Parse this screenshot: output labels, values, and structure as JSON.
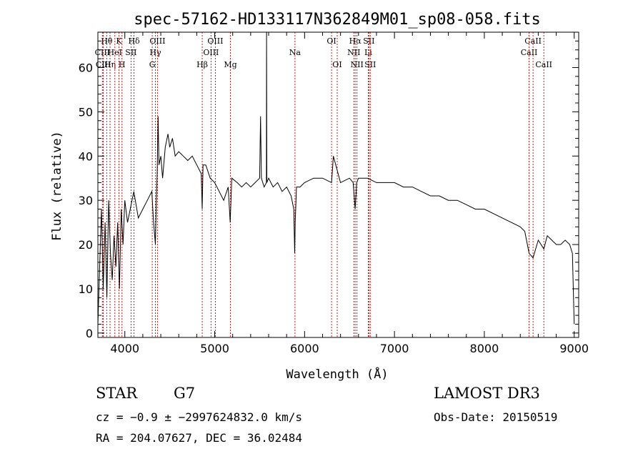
{
  "chart_data": {
    "type": "line",
    "title": "spec-57162-HD133117N362849M01_sp08-058.fits",
    "xlabel": "Wavelength (Å)",
    "ylabel": "Flux (relative)",
    "xlim": [
      3700,
      9050
    ],
    "ylim": [
      -1,
      68
    ],
    "xticks": [
      4000,
      5000,
      6000,
      7000,
      8000,
      9000
    ],
    "yticks": [
      0,
      10,
      20,
      30,
      40,
      50,
      60
    ],
    "grid": false,
    "line_color": "#000000",
    "marker_color": "#cc0000",
    "series": [
      {
        "x": [
          3700,
          3720,
          3740,
          3760,
          3780,
          3800,
          3820,
          3840,
          3860,
          3880,
          3900,
          3920,
          3940,
          3960,
          3980,
          4000,
          4030,
          4060,
          4100,
          4150,
          4200,
          4250,
          4300,
          4320,
          4340,
          4350,
          4360,
          4370,
          4380,
          4400,
          4420,
          4450,
          4480,
          4500,
          4530,
          4560,
          4600,
          4650,
          4700,
          4750,
          4800,
          4850,
          4861,
          4870,
          4900,
          4950,
          5000,
          5050,
          5100,
          5150,
          5172,
          5190,
          5250,
          5300,
          5350,
          5400,
          5450,
          5500,
          5510,
          5520,
          5550,
          5575,
          5577,
          5580,
          5600,
          5650,
          5700,
          5750,
          5800,
          5850,
          5880,
          5890,
          5896,
          5910,
          5950,
          6000,
          6100,
          6200,
          6300,
          6320,
          6400,
          6500,
          6540,
          6563,
          6580,
          6600,
          6700,
          6800,
          6900,
          7000,
          7100,
          7200,
          7300,
          7400,
          7500,
          7600,
          7700,
          7800,
          7900,
          8000,
          8100,
          8200,
          8300,
          8400,
          8450,
          8498,
          8542,
          8600,
          8662,
          8700,
          8750,
          8800,
          8850,
          8900,
          8950,
          8980,
          9000
        ],
        "y": [
          2,
          15,
          28,
          10,
          25,
          8,
          30,
          18,
          12,
          22,
          15,
          25,
          10,
          28,
          20,
          30,
          25,
          28,
          32,
          26,
          28,
          30,
          32,
          25,
          20,
          30,
          36,
          49,
          38,
          40,
          35,
          42,
          45,
          42,
          44,
          40,
          41,
          40,
          39,
          40,
          38,
          36,
          28,
          38,
          38,
          35,
          34,
          32,
          30,
          33,
          25,
          35,
          34,
          33,
          34,
          33,
          34,
          35,
          49,
          35,
          33,
          34,
          68,
          34,
          35,
          33,
          34,
          32,
          33,
          31,
          28,
          18,
          25,
          33,
          33,
          34,
          35,
          35,
          34,
          40,
          34,
          35,
          34,
          28,
          34,
          35,
          35,
          34,
          34,
          34,
          33,
          33,
          32,
          31,
          31,
          30,
          30,
          29,
          28,
          28,
          27,
          26,
          25,
          24,
          23,
          18,
          17,
          21,
          19,
          22,
          21,
          20,
          20,
          21,
          20,
          18,
          2
        ]
      }
    ],
    "line_markers": [
      {
        "label": "Hθ",
        "x": 3798,
        "row": 1
      },
      {
        "label": "CIII",
        "x": 3750,
        "row": 2
      },
      {
        "label": "CIII",
        "x": 3760,
        "row": 3
      },
      {
        "label": "Hη",
        "x": 3835,
        "row": 3
      },
      {
        "label": "K",
        "x": 3934,
        "row": 1
      },
      {
        "label": "HeI",
        "x": 3889,
        "row": 2
      },
      {
        "label": "H",
        "x": 3968,
        "row": 3
      },
      {
        "label": "SII",
        "x": 4069,
        "row": 2
      },
      {
        "label": "Hδ",
        "x": 4102,
        "row": 1
      },
      {
        "label": "OIII",
        "x": 4363,
        "row": 1
      },
      {
        "label": "Hγ",
        "x": 4340,
        "row": 2
      },
      {
        "label": "G",
        "x": 4305,
        "row": 3
      },
      {
        "label": "Hβ",
        "x": 4861,
        "row": 3
      },
      {
        "label": "OIII",
        "x": 5007,
        "row": 1
      },
      {
        "label": "OIII",
        "x": 4959,
        "row": 2
      },
      {
        "label": "Mg",
        "x": 5175,
        "row": 3
      },
      {
        "label": "Na",
        "x": 5893,
        "row": 2
      },
      {
        "label": "OI",
        "x": 6300,
        "row": 1
      },
      {
        "label": "OI",
        "x": 6363,
        "row": 3
      },
      {
        "label": "Hα",
        "x": 6563,
        "row": 1
      },
      {
        "label": "NII",
        "x": 6548,
        "row": 2
      },
      {
        "label": "NII",
        "x": 6583,
        "row": 3
      },
      {
        "label": "SII",
        "x": 6716,
        "row": 1
      },
      {
        "label": "Li",
        "x": 6708,
        "row": 2
      },
      {
        "label": "SII",
        "x": 6731,
        "row": 3
      },
      {
        "label": "CaII",
        "x": 8542,
        "row": 1
      },
      {
        "label": "CaII",
        "x": 8498,
        "row": 2
      },
      {
        "label": "CaII",
        "x": 8662,
        "row": 3
      }
    ]
  },
  "info": {
    "object_class": "STAR",
    "subclass": "G7",
    "survey": "LAMOST DR3",
    "velocity": "cz = −0.9 ± −2997624832.0 km/s",
    "obs_date": "Obs-Date: 20150519",
    "coordinates": "RA = 204.07627, DEC =  36.02484"
  }
}
